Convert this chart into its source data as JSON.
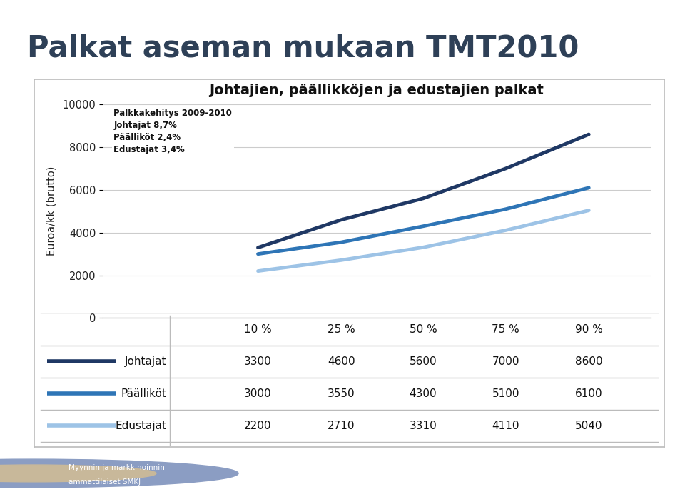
{
  "title": "Palkat aseman mukaan TMT2010",
  "chart_title": "Johtajien, päällikköjen ja edustajien palkat",
  "ylabel": "Euroa/kk (brutto)",
  "x_labels": [
    "10 %",
    "25 %",
    "50 %",
    "75 %",
    "90 %"
  ],
  "x_values": [
    1,
    2,
    3,
    4,
    5
  ],
  "series": [
    {
      "name": "Johtajat",
      "values": [
        3300,
        4600,
        5600,
        7000,
        8600
      ],
      "color": "#1F3864",
      "linewidth": 3.5
    },
    {
      "name": "Päälliköt",
      "values": [
        3000,
        3550,
        4300,
        5100,
        6100
      ],
      "color": "#2E75B6",
      "linewidth": 3.5
    },
    {
      "name": "Edustajat",
      "values": [
        2200,
        2710,
        3310,
        4110,
        5040
      ],
      "color": "#9DC3E6",
      "linewidth": 3.5
    }
  ],
  "annotation_title": "Palkkakehitys 2009-2010",
  "annotation_lines": [
    "Johtajat 8,7%",
    "Päälliköt 2,4%",
    "Edustajat 3,4%"
  ],
  "ylim": [
    0,
    10000
  ],
  "yticks": [
    0,
    2000,
    4000,
    6000,
    8000,
    10000
  ],
  "background_color": "#FFFFFF",
  "title_color": "#2E4057",
  "footer_bg": "#4A7090",
  "table_rows": [
    [
      "Johtajat",
      "3300",
      "4600",
      "5600",
      "7000",
      "8600"
    ],
    [
      "Päälliköt",
      "3000",
      "3550",
      "4300",
      "5100",
      "6100"
    ],
    [
      "Edustajat",
      "2200",
      "2710",
      "3310",
      "4110",
      "5040"
    ]
  ],
  "row_colors": [
    "#1F3864",
    "#2E75B6",
    "#9DC3E6"
  ],
  "grid_color": "#CCCCCC",
  "border_color": "#BBBBBB"
}
